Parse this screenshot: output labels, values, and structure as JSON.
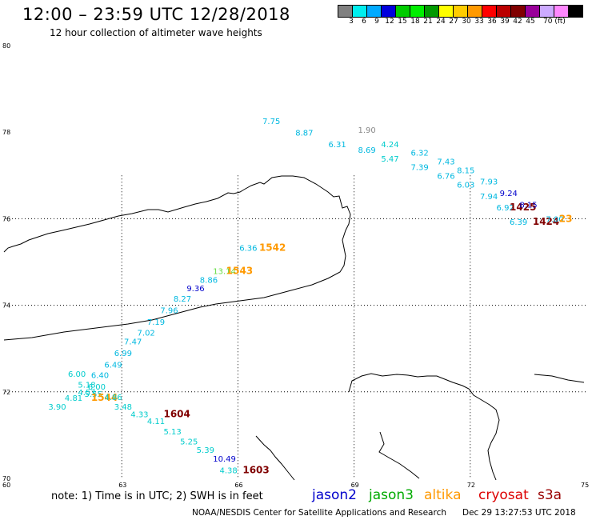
{
  "title": "12:00 – 23:59 UTC 12/28/2018",
  "subtitle": "12 hour collection of altimeter wave heights",
  "scale": {
    "colors": [
      "#808080",
      "#00eeee",
      "#00aaff",
      "#0000dd",
      "#00cc00",
      "#00ee00",
      "#009900",
      "#ffff00",
      "#ffcc00",
      "#ff9900",
      "#ff0000",
      "#bb0000",
      "#800000",
      "#990099",
      "#ccaaff",
      "#ff88ff",
      "#000000"
    ],
    "labels": [
      "3",
      "6",
      "9",
      "12",
      "15",
      "18",
      "21",
      "24",
      "27",
      "30",
      "33",
      "36",
      "39",
      "42",
      "45",
      "70 (ft)"
    ]
  },
  "axes": {
    "lat_labels": [
      "80",
      "78",
      "76",
      "74",
      "72",
      "70"
    ],
    "lon_labels": [
      "60",
      "63",
      "66",
      "69",
      "72",
      "75"
    ]
  },
  "points": [
    {
      "t": "7.75",
      "lon": 62.0,
      "lat": 77.0,
      "c": "#00b8e0"
    },
    {
      "t": "8.87",
      "lon": 63.0,
      "lat": 76.8,
      "c": "#00b8e0"
    },
    {
      "t": "6.31",
      "lon": 64.0,
      "lat": 76.6,
      "c": "#00b8e0"
    },
    {
      "t": "1.90",
      "lon": 64.9,
      "lat": 76.85,
      "c": "#888888"
    },
    {
      "t": "8.69",
      "lon": 64.9,
      "lat": 76.5,
      "c": "#00b8e0"
    },
    {
      "t": "4.24",
      "lon": 65.6,
      "lat": 76.6,
      "c": "#00cccc"
    },
    {
      "t": "5.47",
      "lon": 65.6,
      "lat": 76.35,
      "c": "#00cccc"
    },
    {
      "t": "6.32",
      "lon": 66.5,
      "lat": 76.45,
      "c": "#00b8e0"
    },
    {
      "t": "7.39",
      "lon": 66.5,
      "lat": 76.2,
      "c": "#00b8e0"
    },
    {
      "t": "7.43",
      "lon": 67.3,
      "lat": 76.3,
      "c": "#00b8e0"
    },
    {
      "t": "6.76",
      "lon": 67.3,
      "lat": 76.05,
      "c": "#00b8e0"
    },
    {
      "t": "8.15",
      "lon": 67.9,
      "lat": 76.15,
      "c": "#00b8e0"
    },
    {
      "t": "6.03",
      "lon": 67.9,
      "lat": 75.9,
      "c": "#00b8e0"
    },
    {
      "t": "7.93",
      "lon": 68.6,
      "lat": 75.95,
      "c": "#00b8e0"
    },
    {
      "t": "7.94",
      "lon": 68.6,
      "lat": 75.7,
      "c": "#00b8e0"
    },
    {
      "t": "9.24",
      "lon": 69.2,
      "lat": 75.75,
      "c": "#0000cc"
    },
    {
      "t": "6.92",
      "lon": 69.1,
      "lat": 75.5,
      "c": "#00b8e0"
    },
    {
      "t": "1425",
      "lon": 69.5,
      "lat": 75.5,
      "c": "#800000",
      "big": true
    },
    {
      "t": "8.15",
      "lon": 69.8,
      "lat": 75.55,
      "c": "#0000cc"
    },
    {
      "t": "6.39",
      "lon": 69.5,
      "lat": 75.25,
      "c": "#00b8e0"
    },
    {
      "t": "1424",
      "lon": 70.2,
      "lat": 75.25,
      "c": "#800000",
      "big": true
    },
    {
      "t": "7.00",
      "lon": 70.6,
      "lat": 75.3,
      "c": "#00b8e0"
    },
    {
      "t": "23",
      "lon": 71.0,
      "lat": 75.3,
      "c": "#ff9900",
      "big": true
    },
    {
      "t": "6.36",
      "lon": 61.3,
      "lat": 74.8,
      "c": "#00b8e0"
    },
    {
      "t": "1542",
      "lon": 61.9,
      "lat": 74.8,
      "c": "#ff9900",
      "big": true
    },
    {
      "t": "13.14",
      "lon": 60.5,
      "lat": 74.4,
      "c": "#66dd44"
    },
    {
      "t": "1543",
      "lon": 60.9,
      "lat": 74.4,
      "c": "#ff9900",
      "big": true
    },
    {
      "t": "8.86",
      "lon": 60.1,
      "lat": 74.25,
      "c": "#00b8e0"
    },
    {
      "t": "9.36",
      "lon": 59.7,
      "lat": 74.1,
      "c": "#0000cc"
    },
    {
      "t": "8.27",
      "lon": 59.3,
      "lat": 73.92,
      "c": "#00b8e0"
    },
    {
      "t": "7.96",
      "lon": 58.9,
      "lat": 73.72,
      "c": "#00b8e0"
    },
    {
      "t": "7.19",
      "lon": 58.5,
      "lat": 73.52,
      "c": "#00b8e0"
    },
    {
      "t": "7.02",
      "lon": 58.2,
      "lat": 73.33,
      "c": "#00b8e0"
    },
    {
      "t": "7.47",
      "lon": 57.8,
      "lat": 73.18,
      "c": "#00b8e0"
    },
    {
      "t": "6.99",
      "lon": 57.5,
      "lat": 72.98,
      "c": "#00b8e0"
    },
    {
      "t": "6.49",
      "lon": 57.2,
      "lat": 72.78,
      "c": "#00b8e0"
    },
    {
      "t": "6.40",
      "lon": 56.8,
      "lat": 72.6,
      "c": "#00b8e0"
    },
    {
      "t": "6.00",
      "lon": 56.1,
      "lat": 72.62,
      "c": "#00cccc"
    },
    {
      "t": "5.18",
      "lon": 56.4,
      "lat": 72.43,
      "c": "#00cccc"
    },
    {
      "t": "6.00",
      "lon": 56.7,
      "lat": 72.4,
      "c": "#00cccc"
    },
    {
      "t": "4.53",
      "lon": 56.4,
      "lat": 72.3,
      "c": "#00cccc"
    },
    {
      "t": "5.55",
      "lon": 56.6,
      "lat": 72.27,
      "c": "#00cccc"
    },
    {
      "t": "4.81",
      "lon": 56.0,
      "lat": 72.2,
      "c": "#00cccc"
    },
    {
      "t": "1544",
      "lon": 56.8,
      "lat": 72.2,
      "c": "#ff9900",
      "big": true
    },
    {
      "t": "4.86",
      "lon": 57.2,
      "lat": 72.22,
      "c": "#00cccc"
    },
    {
      "t": "3.90",
      "lon": 55.5,
      "lat": 72.05,
      "c": "#00cccc"
    },
    {
      "t": "3.48",
      "lon": 57.5,
      "lat": 72.05,
      "c": "#00cccc"
    },
    {
      "t": "4.33",
      "lon": 58.0,
      "lat": 71.92,
      "c": "#00cccc"
    },
    {
      "t": "1604",
      "lon": 59.0,
      "lat": 71.92,
      "c": "#800000",
      "big": true
    },
    {
      "t": "4.11",
      "lon": 58.5,
      "lat": 71.8,
      "c": "#00cccc"
    },
    {
      "t": "5.13",
      "lon": 59.0,
      "lat": 71.62,
      "c": "#00cccc"
    },
    {
      "t": "5.25",
      "lon": 59.5,
      "lat": 71.45,
      "c": "#00cccc"
    },
    {
      "t": "5.39",
      "lon": 60.0,
      "lat": 71.3,
      "c": "#00cccc"
    },
    {
      "t": "10.49",
      "lon": 60.5,
      "lat": 71.15,
      "c": "#0000cc"
    },
    {
      "t": "4.38",
      "lon": 60.7,
      "lat": 70.95,
      "c": "#00cccc"
    },
    {
      "t": "1603",
      "lon": 61.4,
      "lat": 70.95,
      "c": "#800000",
      "big": true
    }
  ],
  "footer": {
    "note": "note: 1) Time is in UTC; 2) SWH is in feet",
    "legend": [
      {
        "label": "jason2",
        "color": "#0000cc"
      },
      {
        "label": "jason3",
        "color": "#00aa00"
      },
      {
        "label": "altika",
        "color": "#ff9900"
      },
      {
        "label": "cryosat",
        "color": "#dd0000"
      },
      {
        "label": "s3a",
        "color": "#990000"
      }
    ],
    "credit": "NOAA/NESDIS Center for Satellite Applications and Research",
    "timestamp": "Dec 29 13:27:53 UTC 2018"
  }
}
